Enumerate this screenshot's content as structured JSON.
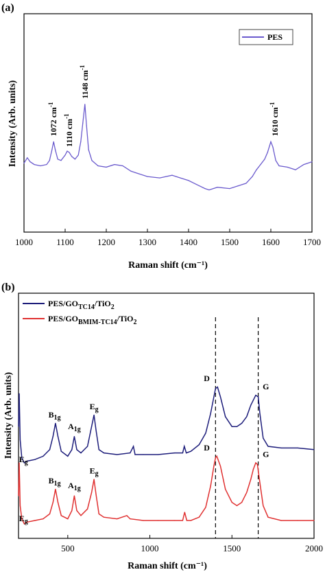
{
  "chart_data": [
    {
      "type": "line",
      "panel_label": "(a)",
      "xlabel": "Raman shift (cm⁻¹)",
      "ylabel": "Intensity (Arb. units)",
      "xlim": [
        1000,
        1700
      ],
      "ylim": [
        0,
        100
      ],
      "xticks": [
        1000,
        1100,
        1200,
        1300,
        1400,
        1500,
        1600,
        1700
      ],
      "legend_position": "top-right",
      "series": [
        {
          "name": "PES",
          "color": "#6a5acd",
          "x": [
            1000,
            1008,
            1015,
            1025,
            1040,
            1055,
            1062,
            1068,
            1072,
            1076,
            1082,
            1090,
            1100,
            1105,
            1110,
            1116,
            1124,
            1132,
            1138,
            1143,
            1148,
            1152,
            1157,
            1165,
            1180,
            1200,
            1220,
            1240,
            1260,
            1280,
            1300,
            1330,
            1360,
            1380,
            1400,
            1420,
            1440,
            1450,
            1470,
            1500,
            1520,
            1540,
            1555,
            1565,
            1575,
            1585,
            1592,
            1600,
            1605,
            1612,
            1620,
            1640,
            1660,
            1680,
            1700
          ],
          "y": [
            32,
            36,
            33,
            31,
            30,
            31,
            34,
            42,
            48,
            42,
            35,
            34,
            38,
            41,
            40,
            37,
            35,
            38,
            48,
            62,
            76,
            60,
            42,
            34,
            30,
            29,
            31,
            30,
            26,
            24,
            22,
            21,
            23,
            21,
            19,
            16,
            13,
            12,
            14,
            13,
            15,
            17,
            22,
            27,
            31,
            35,
            40,
            48,
            44,
            34,
            30,
            29,
            27,
            31,
            33
          ]
        }
      ],
      "annotations": [
        {
          "x": 1072,
          "y": 48,
          "text": "1072 cm",
          "sup": "-1"
        },
        {
          "x": 1110,
          "y": 40,
          "text": "1110 cm",
          "sup": "-1"
        },
        {
          "x": 1148,
          "y": 76,
          "text": "1148 cm",
          "sup": "-1"
        },
        {
          "x": 1610,
          "y": 48,
          "text": "1610 cm",
          "sup": "-1"
        }
      ]
    },
    {
      "type": "line",
      "panel_label": "(b)",
      "xlabel": "Raman shift (cm⁻¹)",
      "ylabel": "Intensity (Arb. units)",
      "xlim": [
        200,
        2000
      ],
      "ylim": [
        0,
        100
      ],
      "xticks": [
        500,
        1000,
        1500,
        2000
      ],
      "legend_position": "top-left",
      "series": [
        {
          "name_base": "PES/GO",
          "name_sub": "TC14",
          "name_tail": "/TiO",
          "name_tail_sub": "2",
          "color": "#1c1c7a",
          "x": [
            200,
            204,
            210,
            220,
            235,
            250,
            300,
            350,
            390,
            410,
            425,
            440,
            460,
            500,
            525,
            540,
            555,
            580,
            620,
            645,
            660,
            672,
            690,
            720,
            800,
            880,
            900,
            910,
            960,
            1050,
            1150,
            1200,
            1210,
            1222,
            1250,
            1300,
            1340,
            1370,
            1390,
            1400,
            1412,
            1430,
            1460,
            1500,
            1530,
            1560,
            1590,
            1615,
            1630,
            1645,
            1660,
            1670,
            1690,
            1720,
            1800,
            1900,
            2000
          ],
          "y": [
            62,
            82,
            54,
            43,
            40,
            41,
            42,
            44,
            48,
            56,
            64,
            56,
            47,
            44,
            48,
            56,
            48,
            46,
            50,
            62,
            69,
            60,
            48,
            46,
            45,
            46,
            50,
            45,
            45,
            45,
            46,
            46,
            50,
            46,
            47,
            51,
            58,
            70,
            80,
            85,
            86,
            80,
            68,
            62,
            62,
            64,
            68,
            75,
            78,
            81,
            80,
            70,
            55,
            50,
            49,
            49,
            48
          ]
        },
        {
          "name_base": "PES/GO",
          "name_sub": "BMIM-TC14",
          "name_tail": "/TiO",
          "name_tail_sub": "2",
          "color": "#e03030",
          "x": [
            200,
            204,
            210,
            220,
            235,
            250,
            300,
            350,
            390,
            410,
            425,
            440,
            460,
            500,
            525,
            540,
            555,
            580,
            620,
            645,
            660,
            672,
            690,
            720,
            800,
            860,
            880,
            960,
            1050,
            1150,
            1200,
            1212,
            1225,
            1250,
            1300,
            1340,
            1370,
            1390,
            1400,
            1408,
            1430,
            1460,
            1500,
            1530,
            1560,
            1590,
            1615,
            1630,
            1645,
            1655,
            1670,
            1690,
            1720,
            1800,
            1900,
            2000
          ],
          "y": [
            20,
            40,
            14,
            6,
            3,
            4,
            5,
            6,
            9,
            16,
            24,
            16,
            8,
            6,
            11,
            20,
            11,
            8,
            12,
            22,
            30,
            21,
            9,
            7,
            6,
            8,
            6,
            5,
            5,
            5,
            5,
            10,
            5,
            5,
            7,
            13,
            26,
            38,
            43,
            44,
            38,
            24,
            16,
            14,
            16,
            22,
            30,
            36,
            40,
            39,
            28,
            14,
            7,
            5,
            5,
            5
          ]
        }
      ],
      "annotations": [
        {
          "x": 230,
          "y": 2,
          "base": "E",
          "sub": "g"
        },
        {
          "x": 420,
          "y": 25,
          "base": "B",
          "sub": "1g"
        },
        {
          "x": 540,
          "y": 22,
          "base": "A",
          "sub": "1g"
        },
        {
          "x": 660,
          "y": 31,
          "base": "E",
          "sub": "g"
        },
        {
          "x": 1405,
          "y": 45,
          "base": "D",
          "sub": ""
        },
        {
          "x": 1665,
          "y": 41,
          "base": "G",
          "sub": ""
        },
        {
          "x": 230,
          "y": 38,
          "base": "E",
          "sub": "g"
        },
        {
          "x": 420,
          "y": 65,
          "base": "B",
          "sub": "1g"
        },
        {
          "x": 540,
          "y": 58,
          "base": "A",
          "sub": "1g"
        },
        {
          "x": 660,
          "y": 70,
          "base": "E",
          "sub": "g"
        },
        {
          "x": 1405,
          "y": 87,
          "base": "D",
          "sub": ""
        },
        {
          "x": 1665,
          "y": 82,
          "base": "G",
          "sub": ""
        }
      ],
      "reference_lines_x": [
        1400,
        1660
      ]
    }
  ]
}
